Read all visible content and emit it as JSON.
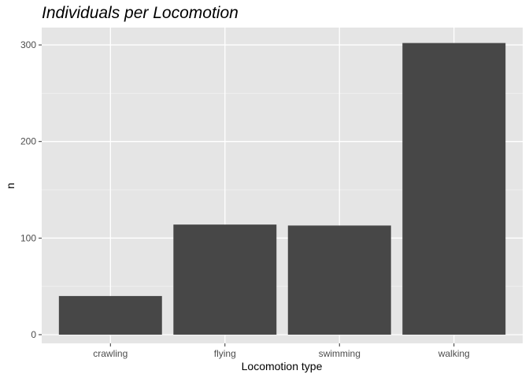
{
  "chart_data": {
    "type": "bar",
    "title": "Individuals per Locomotion",
    "xlabel": "Locomotion type",
    "ylabel": "n",
    "categories": [
      "crawling",
      "flying",
      "swimming",
      "walking"
    ],
    "values": [
      40,
      114,
      113,
      302
    ],
    "ylim": [
      -9,
      318
    ],
    "yticks": [
      0,
      100,
      200,
      300
    ],
    "grid": true,
    "legend": "none"
  },
  "colors": {
    "panel_background": "#e5e5e5",
    "grid_major": "#ffffff",
    "grid_minor": "#f2f2f2",
    "bar_fill": "#474747",
    "tick_text": "#4d4d4d",
    "tick_mark": "#333333"
  }
}
